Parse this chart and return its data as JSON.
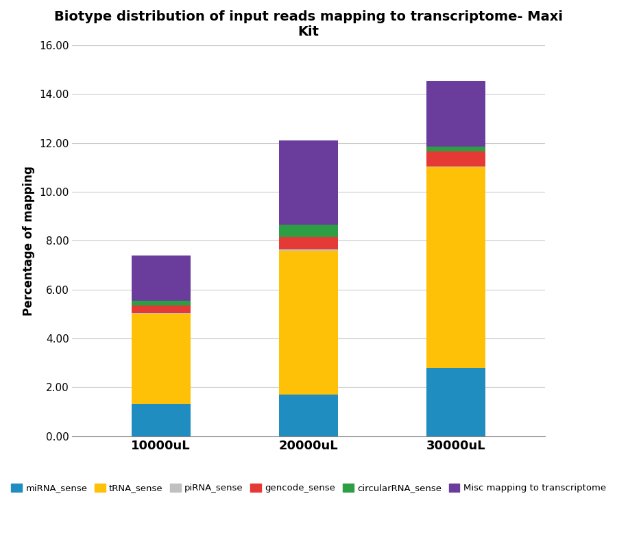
{
  "categories": [
    "10000uL",
    "20000uL",
    "30000uL"
  ],
  "series": {
    "miRNA_sense": [
      1.3,
      1.7,
      2.8
    ],
    "tRNA_sense": [
      3.7,
      5.9,
      8.2
    ],
    "piRNA_sense": [
      0.05,
      0.05,
      0.05
    ],
    "gencode_sense": [
      0.3,
      0.5,
      0.6
    ],
    "circularRNA_sense": [
      0.2,
      0.5,
      0.2
    ],
    "Misc mapping to transcriptome": [
      1.85,
      3.45,
      2.7
    ]
  },
  "colors": {
    "miRNA_sense": "#1F8DC0",
    "tRNA_sense": "#FFC107",
    "piRNA_sense": "#C0C0C0",
    "gencode_sense": "#E53935",
    "circularRNA_sense": "#2E9E44",
    "Misc mapping to transcriptome": "#6A3C9C"
  },
  "title": "Biotype distribution of input reads mapping to transcriptome- Maxi\nKit",
  "ylabel": "Percentage of mapping",
  "ylim": [
    0,
    16.0
  ],
  "yticks": [
    0.0,
    2.0,
    4.0,
    6.0,
    8.0,
    10.0,
    12.0,
    14.0,
    16.0
  ],
  "background_color": "#ffffff",
  "title_fontsize": 14,
  "axis_fontsize": 12,
  "tick_fontsize": 11,
  "xtick_fontsize": 13,
  "bar_width": 0.4,
  "legend_ncol": 6,
  "legend_fontsize": 9.5
}
